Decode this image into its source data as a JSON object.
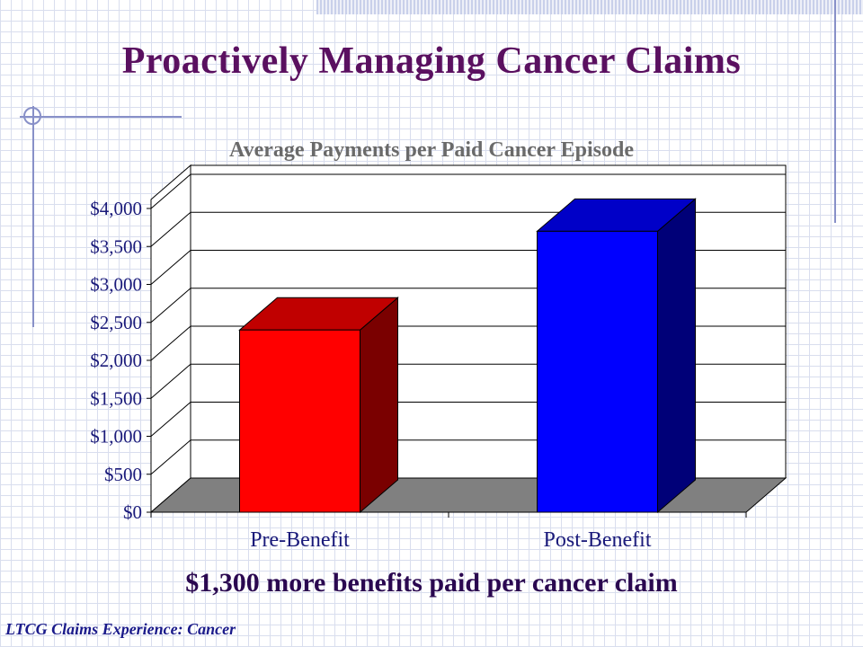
{
  "slide": {
    "title": "Proactively Managing Cancer Claims",
    "callout": "$1,300 more benefits paid per cancer claim",
    "footer": "LTCG Claims Experience:  Cancer"
  },
  "colors": {
    "title": "#5a1060",
    "pre_front": "#ff0000",
    "pre_top": "#c00000",
    "pre_side": "#7a0000",
    "post_front": "#0000ff",
    "post_top": "#0000c8",
    "post_side": "#000078",
    "floor": "#808080"
  },
  "chart_data": {
    "type": "bar",
    "title": "Average Payments per Paid Cancer Episode",
    "categories": [
      "Pre-Benefit",
      "Post-Benefit"
    ],
    "values": [
      2400,
      3700
    ],
    "ylim": [
      0,
      4000
    ],
    "yticks": [
      "$0",
      "$500",
      "$1,000",
      "$1,500",
      "$2,000",
      "$2,500",
      "$3,000",
      "$3,500",
      "$4,000"
    ],
    "ytick_values": [
      0,
      500,
      1000,
      1500,
      2000,
      2500,
      3000,
      3500,
      4000
    ],
    "grid": true,
    "legend": "none",
    "style": "3d"
  }
}
